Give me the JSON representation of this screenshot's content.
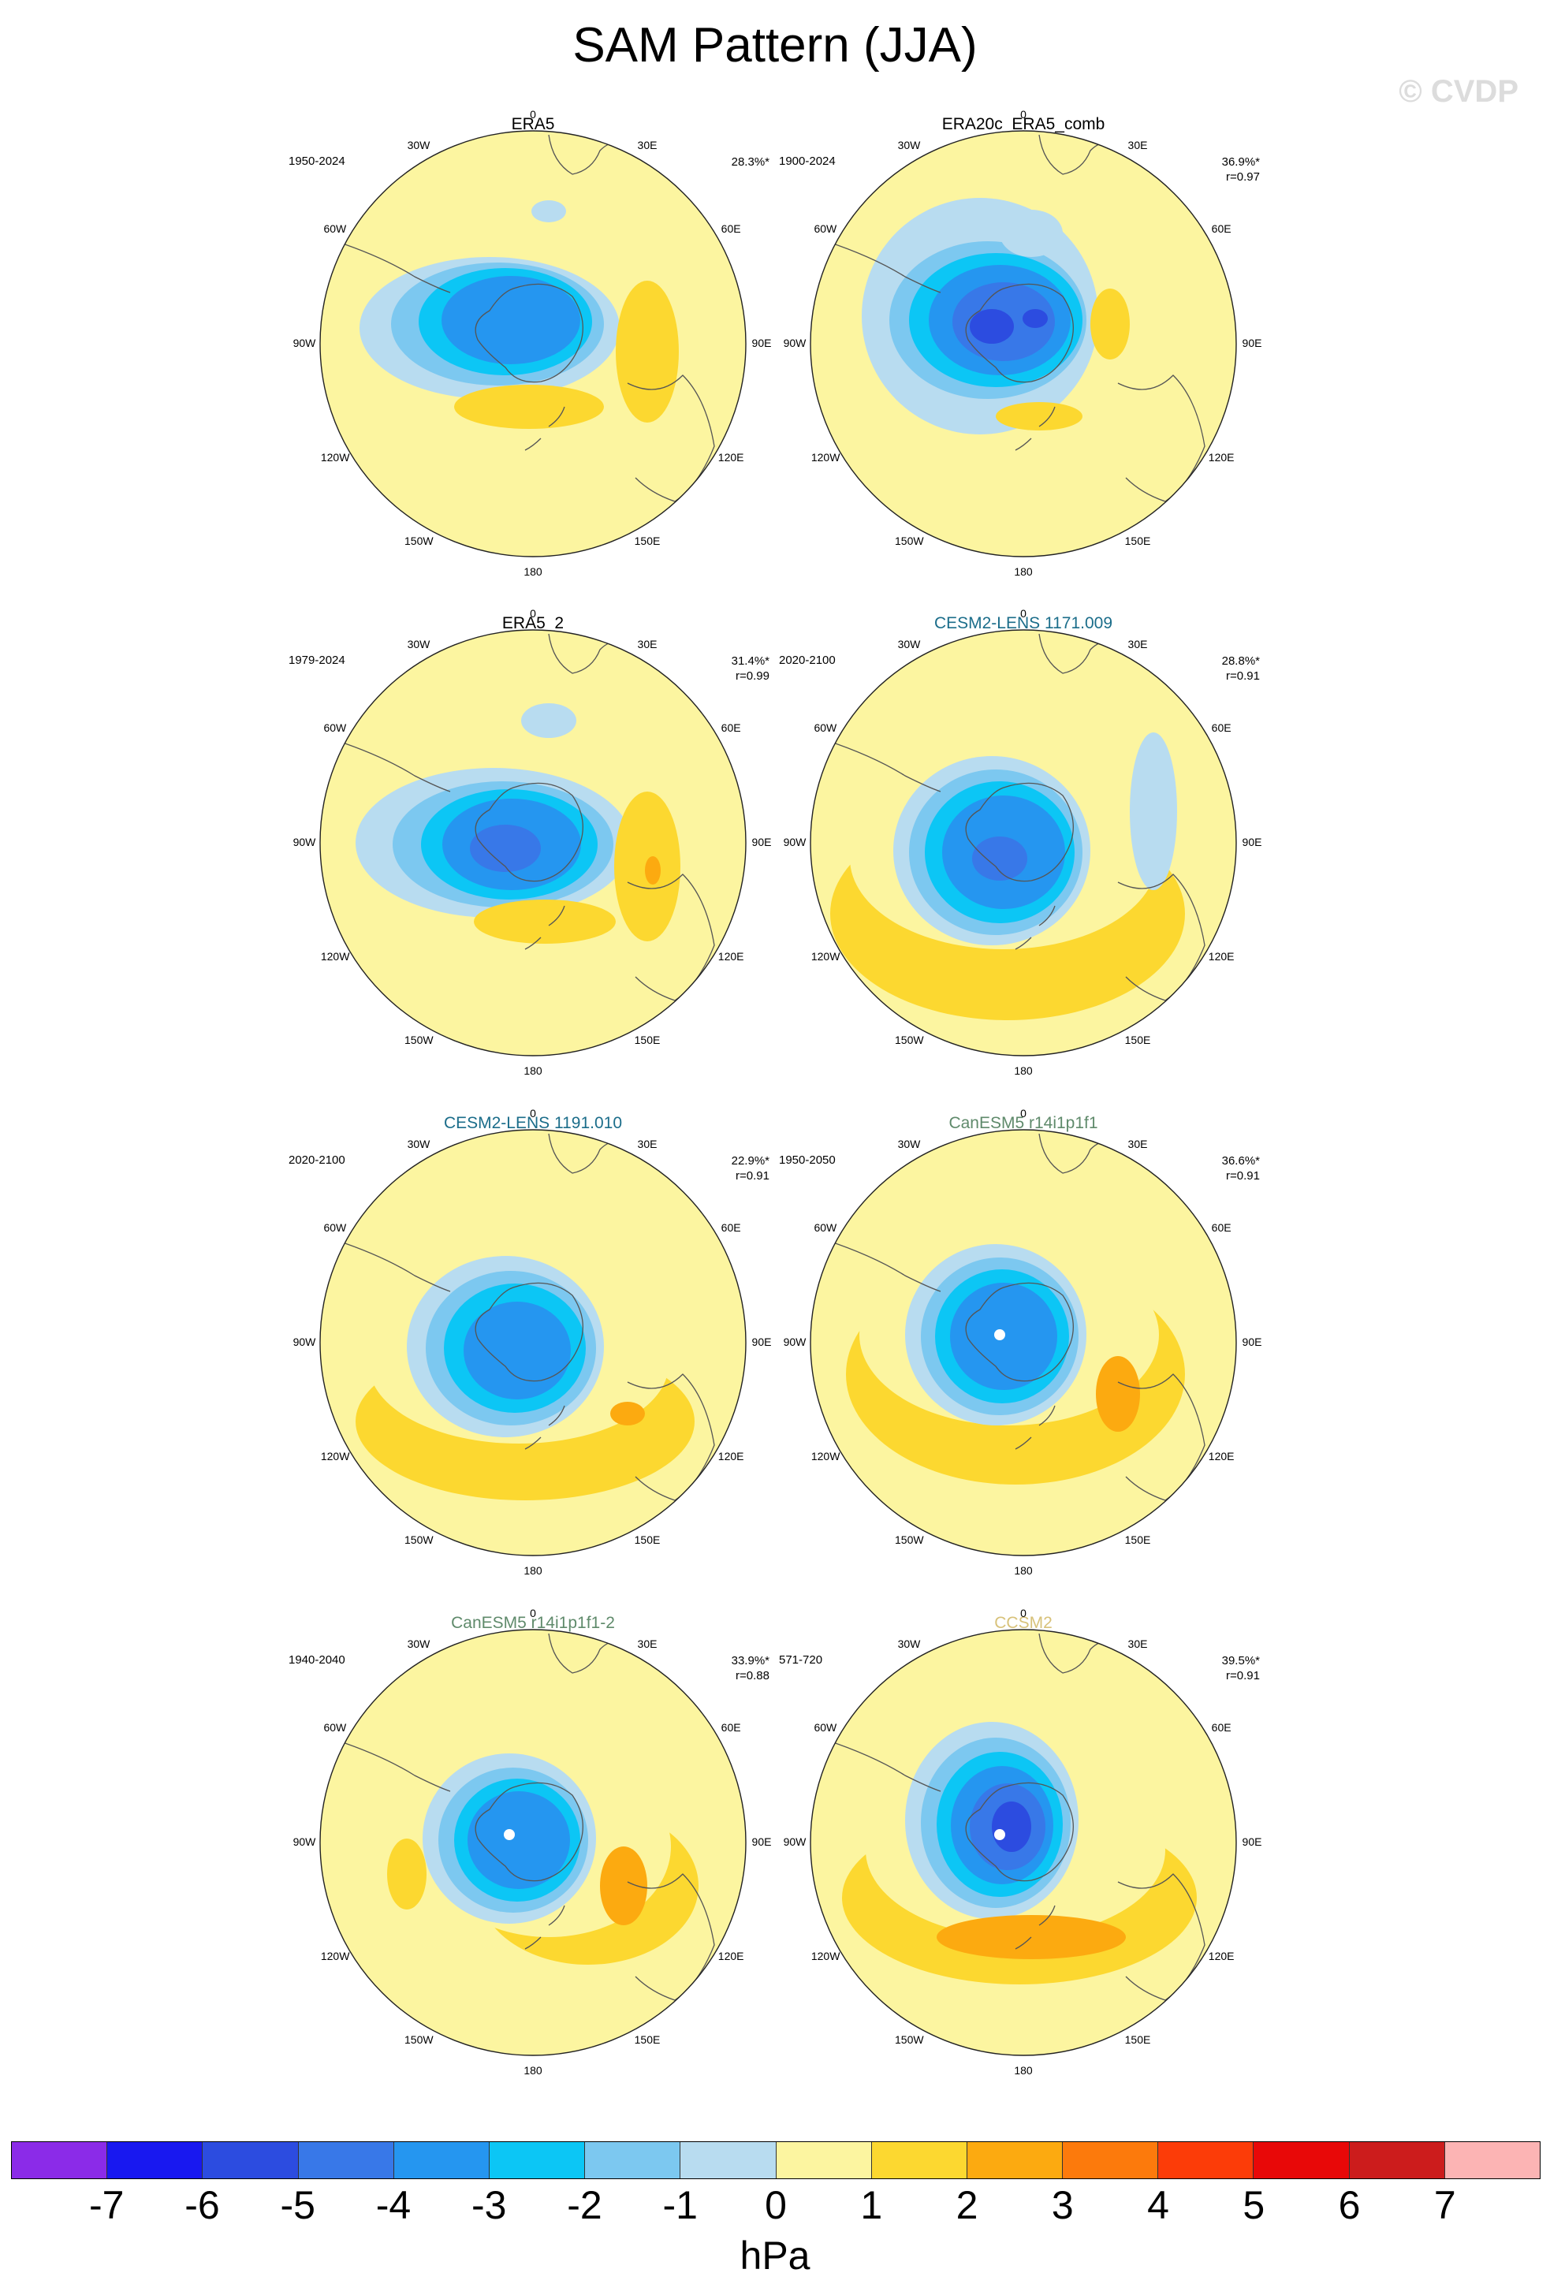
{
  "title": "SAM Pattern (JJA)",
  "watermark": "© CVDP",
  "panels": [
    {
      "id": "era5",
      "title": "ERA5",
      "title_color": "#000000",
      "period": "1950-2024",
      "pct": "28.3%*",
      "r": "",
      "center_hole": false
    },
    {
      "id": "era20c",
      "title": "ERA20c_ERA5_comb",
      "title_color": "#000000",
      "period": "1900-2024",
      "pct": "36.9%*",
      "r": "r=0.97",
      "center_hole": false
    },
    {
      "id": "era5_2",
      "title": "ERA5_2",
      "title_color": "#000000",
      "period": "1979-2024",
      "pct": "31.4%*",
      "r": "r=0.99",
      "center_hole": false
    },
    {
      "id": "cesm2_1171",
      "title": "CESM2-LENS 1171.009",
      "title_color": "#1b6d8a",
      "period": "2020-2100",
      "pct": "28.8%*",
      "r": "r=0.91",
      "center_hole": false
    },
    {
      "id": "cesm2_1191",
      "title": "CESM2-LENS 1191.010",
      "title_color": "#1b6d8a",
      "period": "2020-2100",
      "pct": "22.9%*",
      "r": "r=0.91",
      "center_hole": false
    },
    {
      "id": "canesm5",
      "title": "CanESM5 r14i1p1f1",
      "title_color": "#5f8a6b",
      "period": "1950-2050",
      "pct": "36.6%*",
      "r": "r=0.91",
      "center_hole": true
    },
    {
      "id": "canesm5_2",
      "title": "CanESM5 r14i1p1f1-2",
      "title_color": "#5f8a6b",
      "period": "1940-2040",
      "pct": "33.9%*",
      "r": "r=0.88",
      "center_hole": true
    },
    {
      "id": "ccsm2",
      "title": "CCSM2",
      "title_color": "#d8c27a",
      "period": "571-720",
      "pct": "39.5%*",
      "r": "r=0.91",
      "center_hole": true
    }
  ],
  "lon_labels": {
    "l0": "0",
    "l30e": "30E",
    "l60e": "60E",
    "l90e": "90E",
    "l120e": "120E",
    "l150e": "150E",
    "l180": "180",
    "l150w": "150W",
    "l120w": "120W",
    "l90w": "90W",
    "l60w": "60W",
    "l30w": "30W"
  },
  "colorbar": {
    "unit": "hPa",
    "colors": [
      "#8b2be8",
      "#1818f0",
      "#2c4ce0",
      "#3878e8",
      "#2596f0",
      "#0cc6f5",
      "#7cc8f0",
      "#b8dcf0",
      "#fcf5a0",
      "#fcd830",
      "#fcaa10",
      "#fc7a0c",
      "#fc3c08",
      "#e80808",
      "#cc1c1c",
      "#fcb4b4"
    ],
    "ticks": [
      "-7",
      "-6",
      "-5",
      "-4",
      "-3",
      "-2",
      "-1",
      "0",
      "1",
      "2",
      "3",
      "4",
      "5",
      "6",
      "7"
    ]
  }
}
